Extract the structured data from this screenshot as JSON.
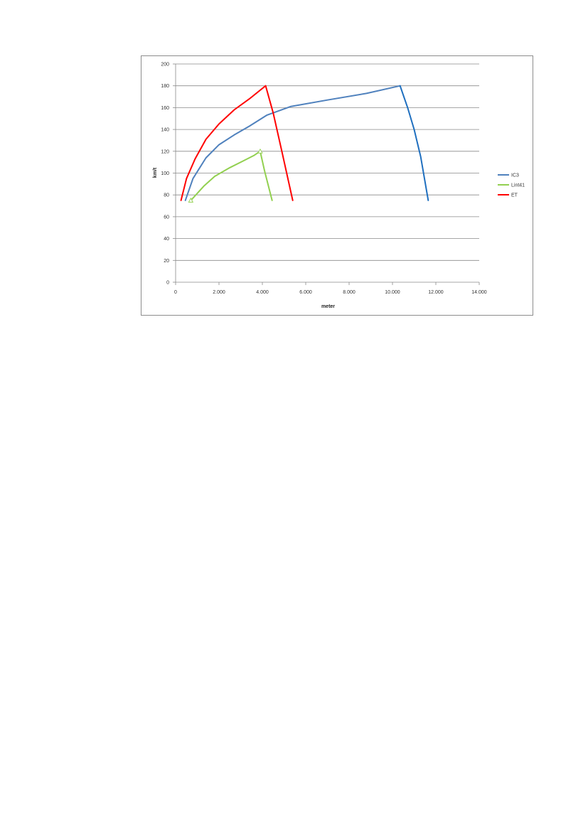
{
  "chart_data": {
    "type": "line",
    "title": "",
    "xlabel": "meter",
    "ylabel": "km/t",
    "xlim": [
      0,
      14000
    ],
    "ylim": [
      0,
      200
    ],
    "x_ticks": [
      0,
      2000,
      4000,
      6000,
      8000,
      10000,
      12000,
      14000
    ],
    "x_tick_labels": [
      "0",
      "2.000",
      "4.000",
      "6.000",
      "8.000",
      "10.000",
      "12.000",
      "14.000"
    ],
    "y_ticks": [
      0,
      20,
      40,
      60,
      80,
      100,
      120,
      140,
      160,
      180,
      200
    ],
    "y_tick_labels": [
      "0",
      "20",
      "40",
      "60",
      "80",
      "100",
      "120",
      "140",
      "160",
      "180",
      "200"
    ],
    "grid": "horizontal",
    "legend_position": "right",
    "series": [
      {
        "name": "IC3",
        "color": "#4f81bd",
        "x": [
          450,
          800,
          1400,
          2000,
          2700,
          3400,
          4200,
          5300,
          7000,
          8800,
          10350
        ],
        "y": [
          75,
          95,
          114,
          126,
          135,
          143,
          153,
          161,
          167,
          173,
          180
        ],
        "decline": {
          "color": "#1f6fbf",
          "x": [
            10350,
            10700,
            11000,
            11300,
            11650
          ],
          "y": [
            180,
            160,
            140,
            115,
            75
          ]
        }
      },
      {
        "name": "Lint41",
        "color": "#92d050",
        "x": [
          700,
          1300,
          1800,
          2500,
          3100,
          3600,
          3900
        ],
        "y": [
          75,
          88,
          97,
          105,
          111,
          116,
          120
        ],
        "decline": {
          "x": [
            3900,
            4100,
            4450
          ],
          "y": [
            120,
            102,
            75
          ]
        },
        "markers": [
          [
            700,
            75
          ],
          [
            3900,
            120
          ]
        ]
      },
      {
        "name": "ET",
        "color": "#ff0000",
        "x": [
          250,
          500,
          900,
          1400,
          2000,
          2700,
          3400,
          4150
        ],
        "y": [
          75,
          95,
          113,
          131,
          145,
          158,
          168,
          180
        ],
        "decline": {
          "x": [
            4150,
            4500,
            4900,
            5400
          ],
          "y": [
            180,
            155,
            120,
            75
          ]
        }
      }
    ]
  }
}
